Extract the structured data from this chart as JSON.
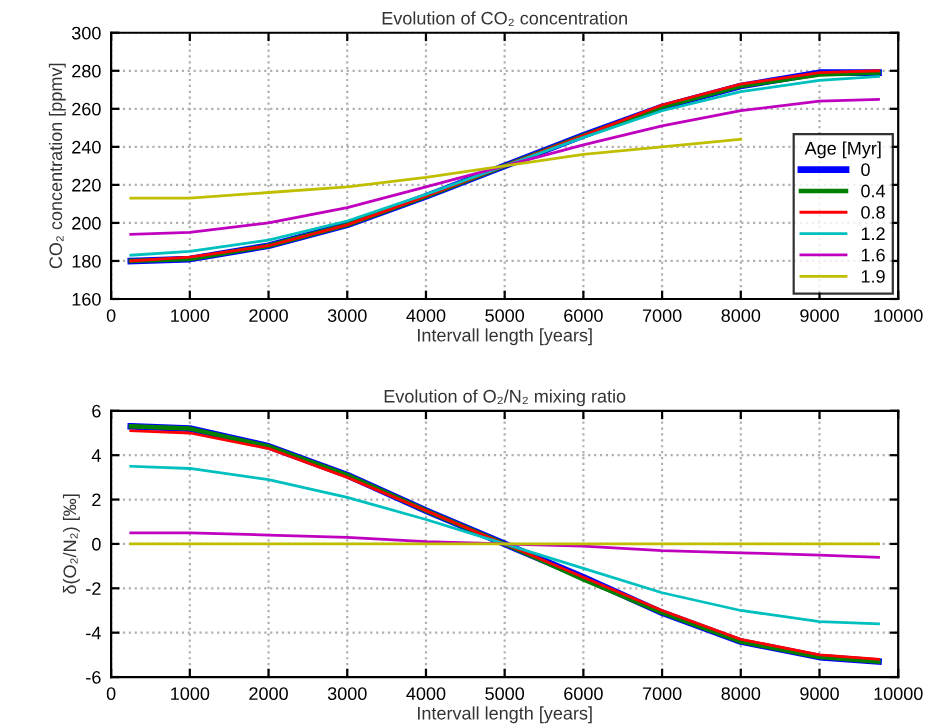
{
  "chart_data": [
    {
      "type": "line",
      "title": "Evolution of CO₂ concentration",
      "xlabel": "Intervall length [years]",
      "ylabel": "CO₂ concentration [ppmv]",
      "legend_title": "Age [Myr]",
      "x": [
        250,
        1000,
        2000,
        3000,
        4000,
        5000,
        6000,
        7000,
        8000,
        9000,
        9750
      ],
      "series": [
        {
          "name": "0",
          "color": "#0000ff",
          "values": [
            180,
            181,
            188,
            199,
            214,
            230,
            246,
            261,
            272,
            279,
            279
          ]
        },
        {
          "name": "0.4",
          "color": "#008000",
          "values": [
            180,
            181,
            188,
            199,
            214,
            230,
            246,
            261,
            272,
            278,
            279
          ]
        },
        {
          "name": "0.8",
          "color": "#ff0000",
          "values": [
            180,
            182,
            188,
            199,
            214,
            230,
            246,
            262,
            273,
            279,
            280
          ]
        },
        {
          "name": "1.2",
          "color": "#00bfbf",
          "values": [
            183,
            185,
            191,
            201,
            215,
            230,
            245,
            259,
            269,
            275,
            277
          ]
        },
        {
          "name": "1.6",
          "color": "#bf00bf",
          "values": [
            194,
            195,
            200,
            208,
            219,
            230,
            241,
            251,
            259,
            264,
            265
          ]
        },
        {
          "name": "1.9",
          "color": "#bfbf00",
          "values": [
            213,
            213,
            216,
            219,
            224,
            230,
            236,
            240,
            244,
            null,
            null
          ]
        }
      ],
      "xlim": [
        0,
        10000
      ],
      "xticks": [
        0,
        1000,
        2000,
        3000,
        4000,
        5000,
        6000,
        7000,
        8000,
        9000,
        10000
      ],
      "ylim": [
        160,
        300
      ],
      "yticks": [
        160,
        180,
        200,
        220,
        240,
        260,
        280,
        300
      ],
      "grid": true,
      "legend": "bottom right"
    },
    {
      "type": "line",
      "title": "Evolution of O₂/N₂ mixing ratio",
      "xlabel": "Intervall length [years]",
      "ylabel": "δ(O₂/N₂) [‰]",
      "x": [
        250,
        1000,
        2000,
        3000,
        4000,
        5000,
        6000,
        7000,
        8000,
        9000,
        9750
      ],
      "series": [
        {
          "color": "#0000ff",
          "values": [
            5.3,
            5.2,
            4.4,
            3.1,
            1.5,
            0,
            -1.5,
            -3.1,
            -4.4,
            -5.1,
            -5.3
          ]
        },
        {
          "color": "#008000",
          "values": [
            5.3,
            5.2,
            4.4,
            3.1,
            1.5,
            0,
            -1.6,
            -3.1,
            -4.4,
            -5.1,
            -5.3
          ]
        },
        {
          "color": "#ff0000",
          "values": [
            5.1,
            5.0,
            4.3,
            3.0,
            1.5,
            0,
            -1.5,
            -3.0,
            -4.3,
            -5.0,
            -5.2
          ]
        },
        {
          "color": "#00bfbf",
          "values": [
            3.5,
            3.4,
            2.9,
            2.1,
            1.1,
            0,
            -1.1,
            -2.2,
            -3.0,
            -3.5,
            -3.6
          ]
        },
        {
          "color": "#bf00bf",
          "values": [
            0.5,
            0.5,
            0.4,
            0.3,
            0.1,
            0,
            -0.1,
            -0.3,
            -0.4,
            -0.5,
            -0.6
          ]
        },
        {
          "color": "#bfbf00",
          "values": [
            0,
            0,
            0,
            0,
            0,
            0,
            0,
            0,
            0,
            0,
            0
          ]
        }
      ],
      "xlim": [
        0,
        10000
      ],
      "xticks": [
        0,
        1000,
        2000,
        3000,
        4000,
        5000,
        6000,
        7000,
        8000,
        9000,
        10000
      ],
      "ylim": [
        -6,
        6
      ],
      "yticks": [
        -6,
        -4,
        -2,
        0,
        2,
        4,
        6
      ],
      "grid": true
    }
  ]
}
